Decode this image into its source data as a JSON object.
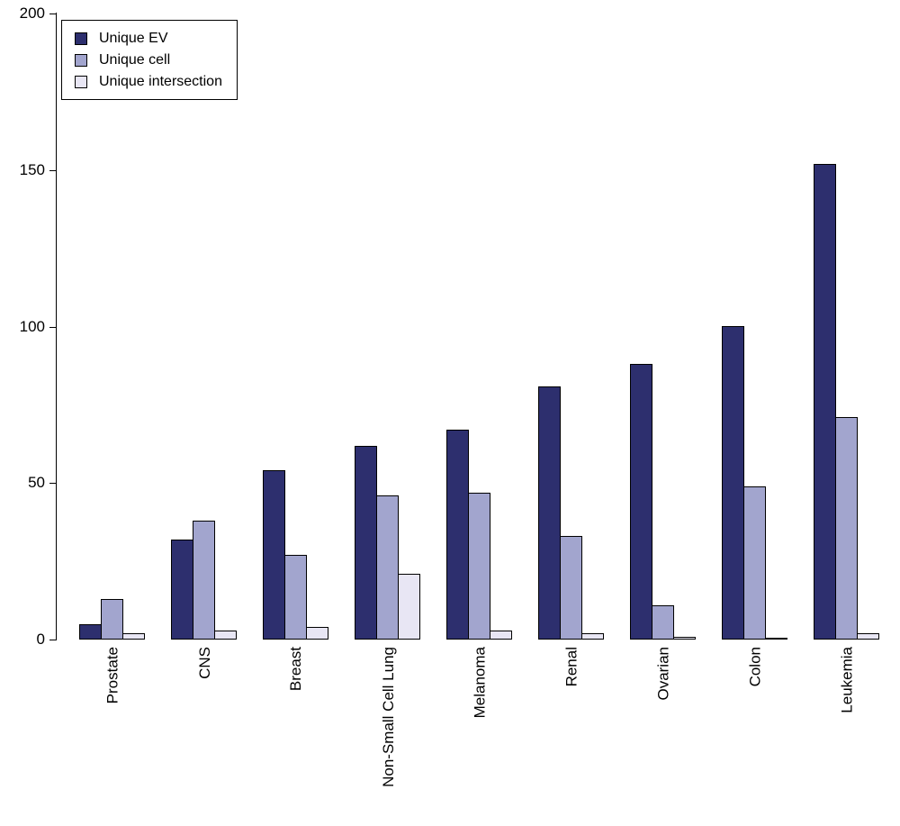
{
  "chart_data": {
    "type": "bar",
    "title": "",
    "xlabel": "",
    "ylabel": "",
    "categories": [
      "Prostate",
      "CNS",
      "Breast",
      "Non-Small Cell Lung",
      "Melanoma",
      "Renal",
      "Ovarian",
      "Colon",
      "Leukemia"
    ],
    "series": [
      {
        "name": "Unique EV",
        "color": "#2d2f6e",
        "values": [
          5,
          32,
          54,
          62,
          67,
          81,
          88,
          100,
          152
        ]
      },
      {
        "name": "Unique cell",
        "color": "#a2a5ce",
        "values": [
          13,
          38,
          27,
          46,
          47,
          33,
          11,
          49,
          71
        ]
      },
      {
        "name": "Unique intersection",
        "color": "#e8e6f4",
        "values": [
          2,
          3,
          4,
          21,
          3,
          2,
          1,
          0.5,
          2
        ]
      }
    ],
    "ylim": [
      0,
      200
    ],
    "yticks": [
      0,
      50,
      100,
      150,
      200
    ],
    "grid": false,
    "legend_position": "top-left",
    "bar_border_color": "#000000",
    "axis_color": "#000000"
  }
}
